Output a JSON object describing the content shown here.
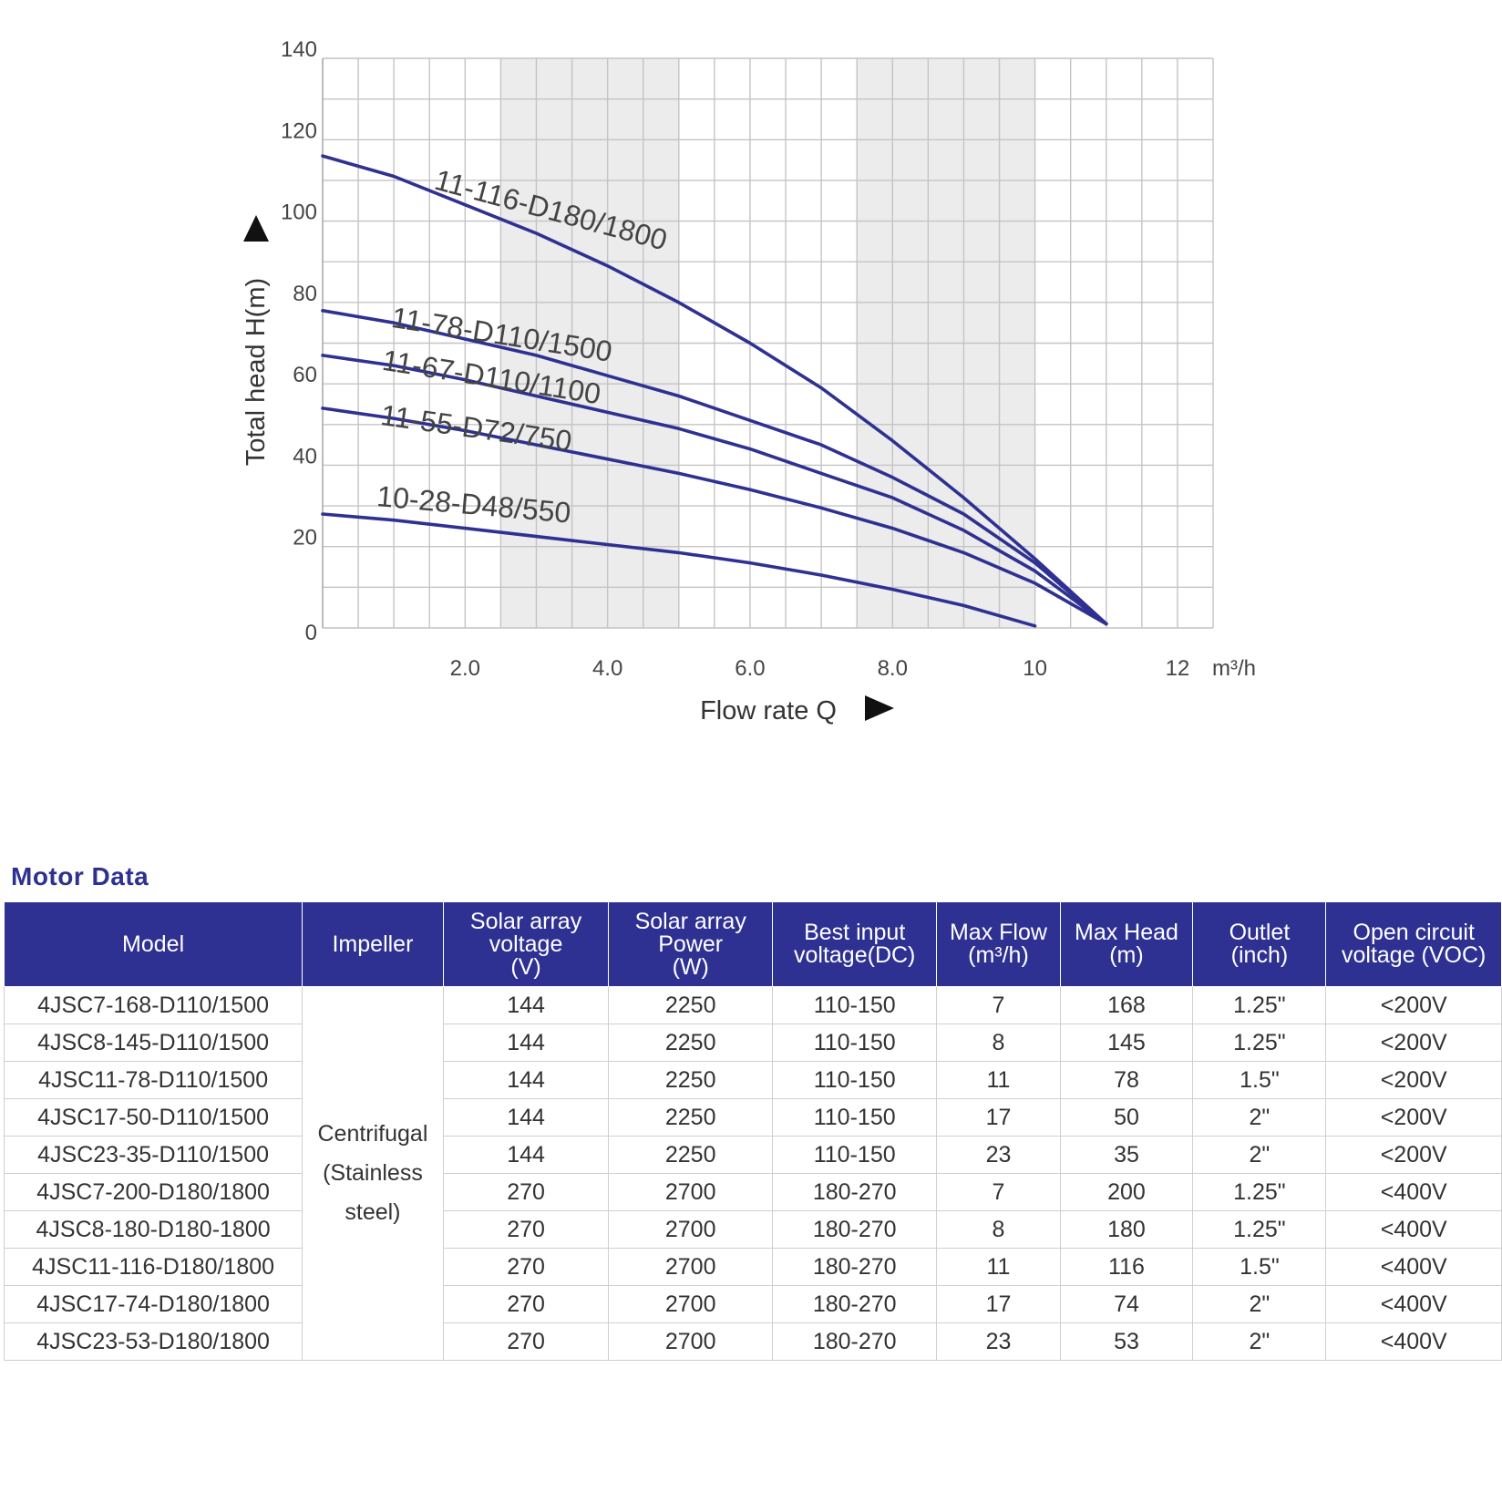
{
  "chart_data": {
    "type": "line",
    "title": "",
    "xlabel": "Flow rate Q",
    "ylabel": "Total head H(m)",
    "x_unit": "m³/h",
    "xlim": [
      0,
      12.5
    ],
    "ylim": [
      0,
      140
    ],
    "x_ticks": [
      {
        "value": 2,
        "label": "2.0"
      },
      {
        "value": 4,
        "label": "4.0"
      },
      {
        "value": 6,
        "label": "6.0"
      },
      {
        "value": 8,
        "label": "8.0"
      },
      {
        "value": 10,
        "label": "10"
      },
      {
        "value": 12,
        "label": "12"
      }
    ],
    "y_ticks": [
      {
        "value": 0,
        "label": "0"
      },
      {
        "value": 20,
        "label": "20"
      },
      {
        "value": 40,
        "label": "40"
      },
      {
        "value": 60,
        "label": "60"
      },
      {
        "value": 80,
        "label": "80"
      },
      {
        "value": 100,
        "label": "100"
      },
      {
        "value": 120,
        "label": "120"
      },
      {
        "value": 140,
        "label": "140"
      }
    ],
    "grid": true,
    "shaded_bands_x": [
      [
        2.5,
        5.0
      ],
      [
        7.5,
        10.0
      ]
    ],
    "series": [
      {
        "name": "11-116-D180/1800",
        "x": [
          0,
          1,
          2,
          3,
          4,
          5,
          6,
          7,
          8,
          9,
          10,
          11
        ],
        "y": [
          116,
          111,
          104,
          97,
          89,
          80,
          70,
          59,
          46,
          32,
          17,
          1
        ]
      },
      {
        "name": "11-78-D110/1500",
        "x": [
          0,
          1,
          2,
          3,
          4,
          5,
          6,
          7,
          8,
          9,
          10,
          11
        ],
        "y": [
          78,
          75,
          71,
          67,
          62,
          57,
          51,
          45,
          37,
          28,
          16,
          1
        ]
      },
      {
        "name": "11-67-D110/1100",
        "x": [
          0,
          1,
          2,
          3,
          4,
          5,
          6,
          7,
          8,
          9,
          10,
          11
        ],
        "y": [
          67,
          64.5,
          61,
          57,
          53,
          49,
          44,
          38,
          32,
          24,
          14,
          1
        ]
      },
      {
        "name": "11-55-D72/750",
        "x": [
          0,
          1,
          2,
          3,
          4,
          5,
          6,
          7,
          8,
          9,
          10,
          11
        ],
        "y": [
          54,
          51.5,
          48.5,
          45,
          41.5,
          38,
          34,
          29.5,
          24.5,
          18.5,
          11,
          1
        ]
      },
      {
        "name": "10-28-D48/550",
        "x": [
          0,
          1,
          2,
          3,
          4,
          5,
          6,
          7,
          8,
          9,
          10
        ],
        "y": [
          28,
          26.5,
          24.5,
          22.5,
          20.5,
          18.5,
          16,
          13,
          9.5,
          5.5,
          0.5
        ]
      }
    ],
    "curve_color": "#2e3192"
  },
  "motor": {
    "title": "Motor Data",
    "headers": [
      [
        "Model"
      ],
      [
        "Impeller"
      ],
      [
        "Solar array",
        "voltage",
        "(V)"
      ],
      [
        "Solar array",
        "Power",
        "(W)"
      ],
      [
        "Best input",
        "voltage(DC)"
      ],
      [
        "Max Flow",
        "(m³/h)"
      ],
      [
        "Max Head",
        "(m)"
      ],
      [
        "Outlet",
        "(inch)"
      ],
      [
        "Open circuit",
        "voltage (VOC)"
      ]
    ],
    "impeller": [
      "Centrifugal",
      "(Stainless",
      "steel)"
    ],
    "rows": [
      [
        "4JSC7-168-D110/1500",
        "144",
        "2250",
        "110-150",
        "7",
        "168",
        "1.25\"",
        "<200V"
      ],
      [
        "4JSC8-145-D110/1500",
        "144",
        "2250",
        "110-150",
        "8",
        "145",
        "1.25\"",
        "<200V"
      ],
      [
        "4JSC11-78-D110/1500",
        "144",
        "2250",
        "110-150",
        "11",
        "78",
        "1.5\"",
        "<200V"
      ],
      [
        "4JSC17-50-D110/1500",
        "144",
        "2250",
        "110-150",
        "17",
        "50",
        "2\"",
        "<200V"
      ],
      [
        "4JSC23-35-D110/1500",
        "144",
        "2250",
        "110-150",
        "23",
        "35",
        "2\"",
        "<200V"
      ],
      [
        "4JSC7-200-D180/1800",
        "270",
        "2700",
        "180-270",
        "7",
        "200",
        "1.25\"",
        "<400V"
      ],
      [
        "4JSC8-180-D180-1800",
        "270",
        "2700",
        "180-270",
        "8",
        "180",
        "1.25\"",
        "<400V"
      ],
      [
        "4JSC11-116-D180/1800",
        "270",
        "2700",
        "180-270",
        "11",
        "116",
        "1.5\"",
        "<400V"
      ],
      [
        "4JSC17-74-D180/1800",
        "270",
        "2700",
        "180-270",
        "17",
        "74",
        "2\"",
        "<400V"
      ],
      [
        "4JSC23-53-D180/1800",
        "270",
        "2700",
        "180-270",
        "23",
        "53",
        "2\"",
        "<400V"
      ]
    ],
    "header_color": "#2e3192"
  }
}
